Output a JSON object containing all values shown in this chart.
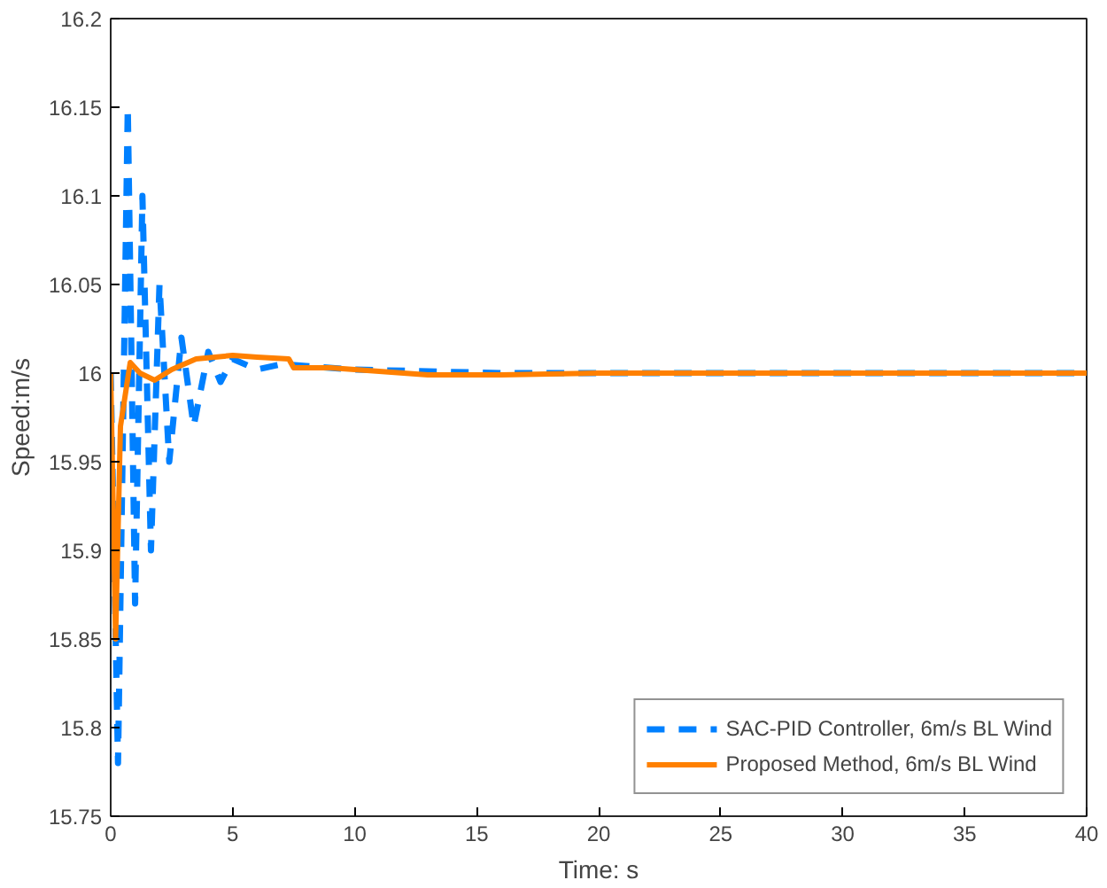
{
  "chart_data": {
    "type": "line",
    "xlabel": "Time: s",
    "ylabel": "Speed:m/s",
    "xlim": [
      0,
      40
    ],
    "ylim": [
      15.75,
      16.2
    ],
    "xticks": [
      0,
      5,
      10,
      15,
      20,
      25,
      30,
      35,
      40
    ],
    "yticks": [
      15.75,
      15.8,
      15.85,
      15.9,
      15.95,
      16,
      16.05,
      16.1,
      16.15,
      16.2
    ],
    "grid": false,
    "legend": "bottom right",
    "series": [
      {
        "name": "SAC-PID Controller, 6m/s BL Wind",
        "color": "#0080ff",
        "line_style": "dashed",
        "x": [
          0,
          0.3,
          0.7,
          1.0,
          1.3,
          1.65,
          2.0,
          2.4,
          2.9,
          3.4,
          4.0,
          4.5,
          5.0,
          6.0,
          7.0,
          8.0,
          10.0,
          13.0,
          16.0,
          20.0,
          40.0
        ],
        "values": [
          16.0,
          15.78,
          16.15,
          15.87,
          16.1,
          15.9,
          16.05,
          15.95,
          16.02,
          15.97,
          16.012,
          15.995,
          16.008,
          16.002,
          16.005,
          16.004,
          16.002,
          16.001,
          16.0,
          16.0,
          16.0
        ]
      },
      {
        "name": "Proposed Method, 6m/s BL Wind",
        "color": "#ff8000",
        "line_style": "solid",
        "x": [
          0,
          0.2,
          0.4,
          0.8,
          1.2,
          1.8,
          2.5,
          3.5,
          5.0,
          6.0,
          7.3,
          7.5,
          9.0,
          11.0,
          13.0,
          16.0,
          20.0,
          40.0
        ],
        "values": [
          16.0,
          15.85,
          15.97,
          16.006,
          16.0,
          15.996,
          16.002,
          16.008,
          16.01,
          16.009,
          16.008,
          16.003,
          16.003,
          16.001,
          15.999,
          15.999,
          16.0,
          16.0
        ]
      }
    ]
  }
}
